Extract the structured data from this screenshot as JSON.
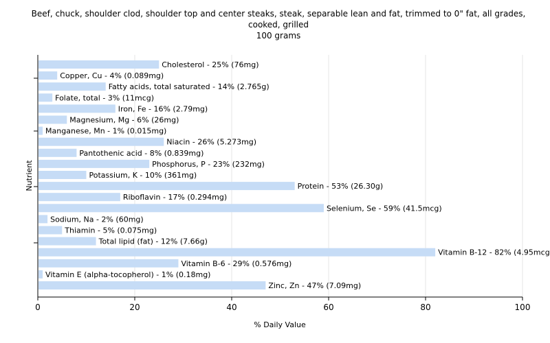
{
  "chart_data": {
    "type": "bar",
    "orientation": "horizontal",
    "title": [
      "Beef, chuck, shoulder clod, shoulder top and center steaks, steak, separable lean and fat, trimmed to 0\" fat, all grades,",
      "cooked, grilled",
      "100 grams"
    ],
    "xlabel": "% Daily Value",
    "ylabel": "Nutrient",
    "xlim": [
      0,
      100
    ],
    "xticks": [
      0,
      20,
      40,
      60,
      80,
      100
    ],
    "grid": true,
    "bar_color": "#c6dcf6",
    "categories": [
      "Cholesterol",
      "Copper, Cu",
      "Fatty acids, total saturated",
      "Folate, total",
      "Iron, Fe",
      "Magnesium, Mg",
      "Manganese, Mn",
      "Niacin",
      "Pantothenic acid",
      "Phosphorus, P",
      "Potassium, K",
      "Protein",
      "Riboflavin",
      "Selenium, Se",
      "Sodium, Na",
      "Thiamin",
      "Total lipid (fat)",
      "Vitamin B-12",
      "Vitamin B-6",
      "Vitamin E (alpha-tocopherol)",
      "Zinc, Zn"
    ],
    "values": [
      25,
      4,
      14,
      3,
      16,
      6,
      1,
      26,
      8,
      23,
      10,
      53,
      17,
      59,
      2,
      5,
      12,
      82,
      29,
      1,
      47
    ],
    "labels": [
      "Cholesterol - 25% (76mg)",
      "Copper, Cu - 4% (0.089mg)",
      "Fatty acids, total saturated - 14% (2.765g)",
      "Folate, total - 3% (11mcg)",
      "Iron, Fe - 16% (2.79mg)",
      "Magnesium, Mg - 6% (26mg)",
      "Manganese, Mn - 1% (0.015mg)",
      "Niacin - 26% (5.273mg)",
      "Pantothenic acid - 8% (0.839mg)",
      "Phosphorus, P - 23% (232mg)",
      "Potassium, K - 10% (361mg)",
      "Protein - 53% (26.30g)",
      "Riboflavin - 17% (0.294mg)",
      "Selenium, Se - 59% (41.5mcg)",
      "Sodium, Na - 2% (60mg)",
      "Thiamin - 5% (0.075mg)",
      "Total lipid (fat) - 12% (7.66g)",
      "Vitamin B-12 - 82% (4.95mcg)",
      "Vitamin B-6 - 29% (0.576mg)",
      "Vitamin E (alpha-tocopherol) - 1% (0.18mg)",
      "Zinc, Zn - 47% (7.09mg)"
    ]
  }
}
